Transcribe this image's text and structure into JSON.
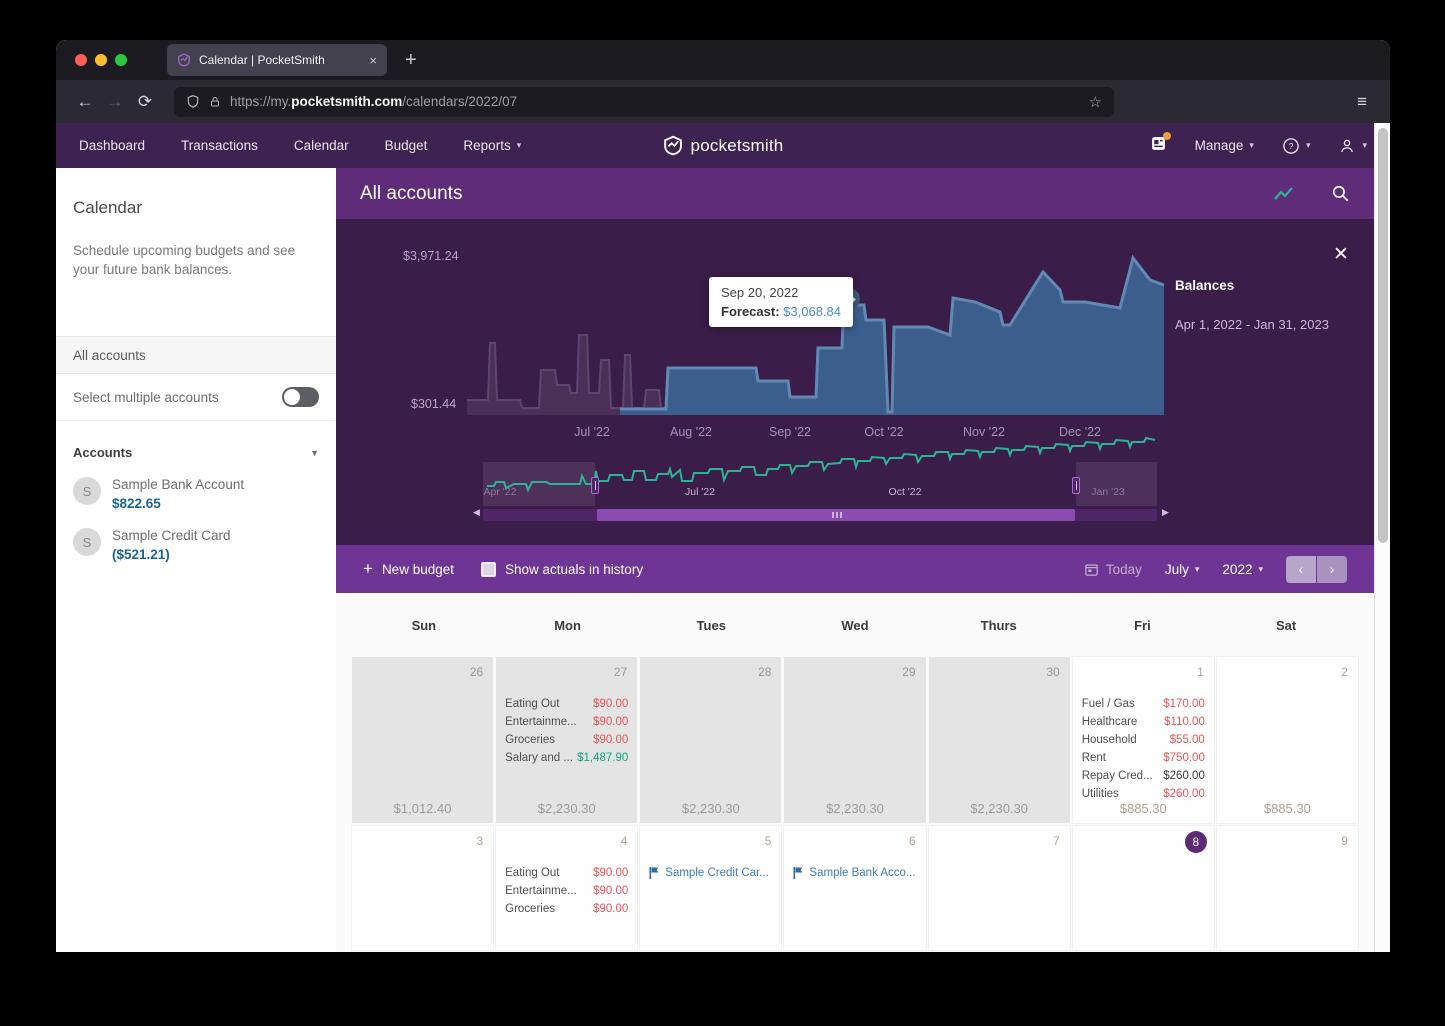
{
  "browser": {
    "tab_title": "Calendar | PocketSmith",
    "close_tab": "×",
    "url_prefix": "https://my.",
    "url_domain": "pocketsmith.com",
    "url_path": "/calendars/2022/07"
  },
  "nav": {
    "items": [
      {
        "label": "Dashboard",
        "caret": false
      },
      {
        "label": "Transactions",
        "caret": false
      },
      {
        "label": "Calendar",
        "caret": false
      },
      {
        "label": "Budget",
        "caret": false
      },
      {
        "label": "Reports",
        "caret": true
      }
    ],
    "logo_text": "pocketsmith",
    "manage_label": "Manage"
  },
  "sidebar": {
    "title": "Calendar",
    "description": "Schedule upcoming budgets and see your future bank balances.",
    "all_accounts_label": "All accounts",
    "select_multiple_label": "Select multiple accounts",
    "accounts_header": "Accounts",
    "accounts": [
      {
        "initial": "S",
        "name": "Sample Bank Account",
        "balance": "$822.65"
      },
      {
        "initial": "S",
        "name": "Sample Credit Card",
        "balance": "($521.21)"
      }
    ]
  },
  "main_header": {
    "title": "All accounts"
  },
  "chart_data": {
    "type": "area",
    "title": "Balances",
    "date_range": "Apr 1, 2022 - Jan 31, 2023",
    "y_axis": {
      "max_label": "$3,971.24",
      "min_label": "$301.44"
    },
    "x_labels": [
      "Jul '22",
      "Aug '22",
      "Sep '22",
      "Oct '22",
      "Nov '22",
      "Dec '22"
    ],
    "tooltip": {
      "date": "Sep 20, 2022",
      "series": "Forecast:",
      "value": "$3,068.84"
    },
    "colors": {
      "history_fill": "#4a3057",
      "history_stroke": "#5e4570",
      "forecast_fill": "#3c5e8c",
      "forecast_stroke": "#6089b4",
      "navigator_line": "#2bb394"
    },
    "series": [
      {
        "name": "history",
        "points": [
          [
            131,
            181
          ],
          [
            152,
            181
          ],
          [
            154,
            124
          ],
          [
            159,
            124
          ],
          [
            161,
            181
          ],
          [
            184,
            181
          ],
          [
            186,
            189
          ],
          [
            203,
            189
          ],
          [
            205,
            151
          ],
          [
            219,
            151
          ],
          [
            221,
            166
          ],
          [
            233,
            166
          ],
          [
            235,
            174
          ],
          [
            241,
            174
          ],
          [
            243,
            116
          ],
          [
            251,
            116
          ],
          [
            253,
            174
          ],
          [
            263,
            174
          ],
          [
            265,
            141
          ],
          [
            273,
            141
          ],
          [
            275,
            189
          ],
          [
            287,
            189
          ],
          [
            289,
            136
          ],
          [
            294,
            136
          ],
          [
            296,
            189
          ],
          [
            308,
            189
          ],
          [
            310,
            171
          ],
          [
            323,
            171
          ],
          [
            325,
            189
          ],
          [
            332,
            189
          ]
        ]
      },
      {
        "name": "forecast",
        "points": [
          [
            284,
            190
          ],
          [
            330,
            190
          ],
          [
            332,
            149
          ],
          [
            420,
            149
          ],
          [
            422,
            162
          ],
          [
            452,
            162
          ],
          [
            454,
            178
          ],
          [
            480,
            178
          ],
          [
            482,
            129
          ],
          [
            506,
            129
          ],
          [
            508,
            78
          ],
          [
            516,
            78
          ],
          [
            518,
            86
          ],
          [
            528,
            86
          ],
          [
            530,
            101
          ],
          [
            548,
            101
          ],
          [
            550,
            146
          ],
          [
            552,
            193
          ],
          [
            556,
            193
          ],
          [
            558,
            108
          ],
          [
            592,
            108
          ],
          [
            614,
            116
          ],
          [
            617,
            79
          ],
          [
            639,
            83
          ],
          [
            664,
            93
          ],
          [
            667,
            106
          ],
          [
            674,
            106
          ],
          [
            707,
            53
          ],
          [
            724,
            71
          ],
          [
            727,
            83
          ],
          [
            749,
            83
          ],
          [
            784,
            89
          ],
          [
            797,
            39
          ],
          [
            814,
            61
          ],
          [
            828,
            66
          ]
        ]
      }
    ],
    "navigator": {
      "labels": [
        "Apr '22",
        "Jul '22",
        "Oct '22",
        "Jan '23"
      ],
      "points": [
        [
          151,
          267
        ],
        [
          158,
          267
        ],
        [
          160,
          263
        ],
        [
          168,
          263
        ],
        [
          170,
          269
        ],
        [
          178,
          265
        ],
        [
          190,
          265
        ],
        [
          192,
          271
        ],
        [
          196,
          263
        ],
        [
          210,
          263
        ],
        [
          214,
          265
        ],
        [
          244,
          265
        ],
        [
          246,
          257
        ],
        [
          250,
          265
        ],
        [
          258,
          265
        ],
        [
          260,
          252
        ],
        [
          262,
          262
        ],
        [
          272,
          262
        ],
        [
          274,
          256
        ],
        [
          286,
          256
        ],
        [
          288,
          261
        ],
        [
          296,
          261
        ],
        [
          298,
          252
        ],
        [
          308,
          252
        ],
        [
          310,
          261
        ],
        [
          320,
          261
        ],
        [
          322,
          255
        ],
        [
          332,
          255
        ],
        [
          334,
          250
        ],
        [
          336,
          258
        ],
        [
          344,
          251
        ],
        [
          346,
          262
        ],
        [
          356,
          262
        ],
        [
          358,
          254
        ],
        [
          372,
          254
        ],
        [
          374,
          250
        ],
        [
          386,
          250
        ],
        [
          388,
          261
        ],
        [
          392,
          252
        ],
        [
          404,
          252
        ],
        [
          406,
          248
        ],
        [
          418,
          248
        ],
        [
          420,
          256
        ],
        [
          430,
          256
        ],
        [
          432,
          250
        ],
        [
          442,
          250
        ],
        [
          444,
          246
        ],
        [
          454,
          246
        ],
        [
          456,
          254
        ],
        [
          460,
          247
        ],
        [
          472,
          247
        ],
        [
          474,
          243
        ],
        [
          486,
          243
        ],
        [
          488,
          251
        ],
        [
          492,
          245
        ],
        [
          504,
          244
        ],
        [
          506,
          240
        ],
        [
          518,
          240
        ],
        [
          520,
          248
        ],
        [
          522,
          242
        ],
        [
          534,
          242
        ],
        [
          536,
          238
        ],
        [
          548,
          239
        ],
        [
          550,
          245
        ],
        [
          554,
          239
        ],
        [
          566,
          239
        ],
        [
          568,
          235
        ],
        [
          580,
          236
        ],
        [
          582,
          243
        ],
        [
          586,
          237
        ],
        [
          598,
          237
        ],
        [
          600,
          233
        ],
        [
          612,
          233
        ],
        [
          614,
          240
        ],
        [
          616,
          235
        ],
        [
          628,
          235
        ],
        [
          630,
          231
        ],
        [
          642,
          232
        ],
        [
          644,
          238
        ],
        [
          646,
          233
        ],
        [
          658,
          233
        ],
        [
          660,
          229
        ],
        [
          672,
          230
        ],
        [
          674,
          236
        ],
        [
          676,
          231
        ],
        [
          688,
          231
        ],
        [
          690,
          227
        ],
        [
          702,
          228
        ],
        [
          704,
          234
        ],
        [
          706,
          229
        ],
        [
          718,
          229
        ],
        [
          720,
          225
        ],
        [
          732,
          226
        ],
        [
          734,
          232
        ],
        [
          736,
          227
        ],
        [
          748,
          227
        ],
        [
          750,
          223
        ],
        [
          762,
          224
        ],
        [
          764,
          230
        ],
        [
          766,
          225
        ],
        [
          778,
          225
        ],
        [
          780,
          221
        ],
        [
          792,
          222
        ],
        [
          794,
          228
        ],
        [
          796,
          223
        ],
        [
          808,
          223
        ],
        [
          810,
          219
        ],
        [
          819,
          221
        ]
      ]
    }
  },
  "budget_bar": {
    "new_budget_label": "New budget",
    "show_actuals_label": "Show actuals in history",
    "today_label": "Today",
    "month_label": "July",
    "year_label": "2022"
  },
  "calendar": {
    "day_headers": [
      "Sun",
      "Mon",
      "Tues",
      "Wed",
      "Thurs",
      "Fri",
      "Sat"
    ],
    "weeks": [
      [
        {
          "day": "26",
          "muted": true,
          "entries": [],
          "total": "$1,012.40"
        },
        {
          "day": "27",
          "muted": true,
          "entries": [
            {
              "name": "Eating Out",
              "amount": "$90.00",
              "type": "expense"
            },
            {
              "name": "Entertainme...",
              "amount": "$90.00",
              "type": "expense"
            },
            {
              "name": "Groceries",
              "amount": "$90.00",
              "type": "expense"
            },
            {
              "name": "Salary and ...",
              "amount": "$1,487.90",
              "type": "income"
            }
          ],
          "total": "$2,230.30"
        },
        {
          "day": "28",
          "muted": true,
          "entries": [],
          "total": "$2,230.30"
        },
        {
          "day": "29",
          "muted": true,
          "entries": [],
          "total": "$2,230.30"
        },
        {
          "day": "30",
          "muted": true,
          "entries": [],
          "total": "$2,230.30"
        },
        {
          "day": "1",
          "muted": false,
          "entries": [
            {
              "name": "Fuel / Gas",
              "amount": "$170.00",
              "type": "expense"
            },
            {
              "name": "Healthcare",
              "amount": "$110.00",
              "type": "expense"
            },
            {
              "name": "Household",
              "amount": "$55.00",
              "type": "expense"
            },
            {
              "name": "Rent",
              "amount": "$750.00",
              "type": "expense"
            },
            {
              "name": "Repay Cred...",
              "amount": "$260.00",
              "type": "transfer"
            },
            {
              "name": "Utilities",
              "amount": "$260.00",
              "type": "expense"
            }
          ],
          "total": "$885.30"
        },
        {
          "day": "2",
          "muted": false,
          "entries": [],
          "total": "$885.30"
        }
      ],
      [
        {
          "day": "3",
          "muted": false,
          "entries": []
        },
        {
          "day": "4",
          "muted": false,
          "entries": [
            {
              "name": "Eating Out",
              "amount": "$90.00",
              "type": "expense"
            },
            {
              "name": "Entertainme...",
              "amount": "$90.00",
              "type": "expense"
            },
            {
              "name": "Groceries",
              "amount": "$90.00",
              "type": "expense"
            }
          ]
        },
        {
          "day": "5",
          "muted": false,
          "entries": [
            {
              "name": "Sample Credit Car...",
              "type": "flag"
            }
          ]
        },
        {
          "day": "6",
          "muted": false,
          "entries": [
            {
              "name": "Sample Bank Acco...",
              "type": "flag"
            }
          ]
        },
        {
          "day": "7",
          "muted": false,
          "entries": []
        },
        {
          "day": "8",
          "muted": false,
          "today": true,
          "entries": []
        },
        {
          "day": "9",
          "muted": false,
          "entries": []
        }
      ]
    ]
  }
}
